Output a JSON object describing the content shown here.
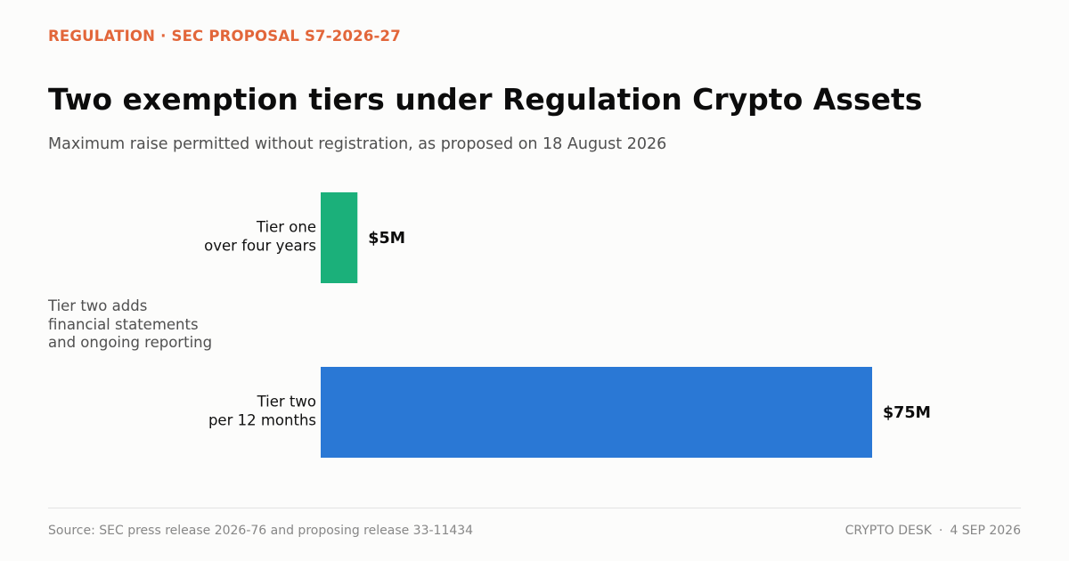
{
  "header": {
    "kicker": "REGULATION · SEC PROPOSAL S7-2026-27",
    "title": "Two exemption tiers under Regulation Crypto Assets",
    "subtitle": "Maximum raise permitted without registration, as proposed on 18 August 2026"
  },
  "annotation": {
    "lines": [
      "Tier two adds",
      "financial statements",
      "and ongoing reporting"
    ]
  },
  "chart_data": {
    "type": "bar",
    "orientation": "horizontal",
    "categories": [
      [
        "Tier one",
        "over four years"
      ],
      [
        "Tier two",
        "per 12 months"
      ]
    ],
    "values": [
      5,
      75
    ],
    "units": "million USD",
    "data_labels": [
      "$5M",
      "$75M"
    ],
    "colors": [
      "#1bb07a",
      "#2a78d5"
    ],
    "xlim": [
      0,
      75
    ],
    "grid": false,
    "legend": "none"
  },
  "footer": {
    "source": "Source: SEC press release 2026-76 and proposing release 33-11434",
    "desk": "CRYPTO DESK",
    "separator": "·",
    "date": "4 SEP 2026"
  },
  "colors": {
    "background": "#fcfcfb",
    "accent": "#e2663a",
    "title": "#0c0c0c",
    "muted_text": "#505050",
    "footer_text": "#878787"
  }
}
